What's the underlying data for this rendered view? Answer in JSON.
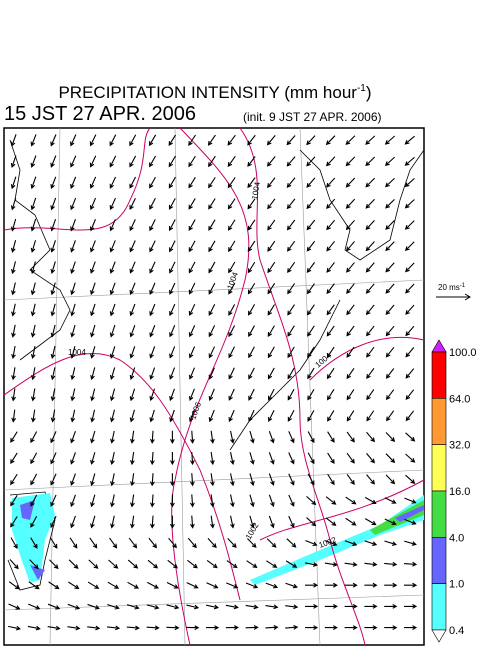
{
  "header": {
    "title": "PRECIPITATION INTENSITY (mm hour",
    "title_superscript": "-1",
    "title_close": ")",
    "valid_time": "15 JST 27 APR. 2006",
    "init_time": "(init. 9 JST 27 APR. 2006)"
  },
  "vector_legend": {
    "label": "20 ms",
    "superscript": "-1"
  },
  "colorbar": {
    "labels": [
      "100.0",
      "64.0",
      "32.0",
      "16.0",
      "4.0",
      "1.0",
      "0.4"
    ],
    "colors": [
      "#ff0000",
      "#ff9933",
      "#ffff55",
      "#44dd44",
      "#6666ff",
      "#55ffff"
    ],
    "top_color": "#cc22ff",
    "bottom_color": "#ffffff"
  },
  "isobar_labels": [
    "1004",
    "1004",
    "1006",
    "1004",
    "1002",
    "1002",
    "1004"
  ]
}
